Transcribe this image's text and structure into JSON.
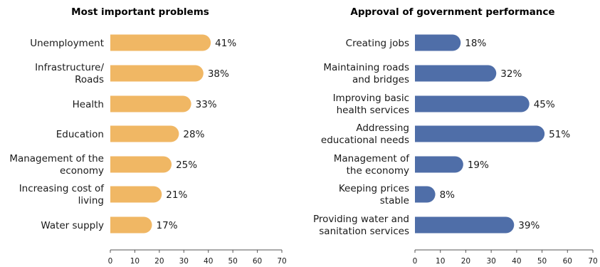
{
  "chart_data": [
    {
      "type": "bar",
      "orientation": "horizontal",
      "title": "Most important problems",
      "categories": [
        "Unemployment",
        "Infrastructure/\nRoads",
        "Health",
        "Education",
        "Management of the\neconomy",
        "Increasing cost of\nliving",
        "Water supply"
      ],
      "values": [
        41,
        38,
        33,
        28,
        25,
        21,
        17
      ],
      "data_labels": [
        "41%",
        "38%",
        "33%",
        "28%",
        "25%",
        "21%",
        "17%"
      ],
      "xlim": [
        0,
        70
      ],
      "xticks": [
        0,
        10,
        20,
        30,
        40,
        50,
        60,
        70
      ],
      "grid": false,
      "color": "#F0B764"
    },
    {
      "type": "bar",
      "orientation": "horizontal",
      "title": "Approval of government performance",
      "categories": [
        "Creating jobs",
        "Maintaining roads\nand bridges",
        "Improving basic\nhealth services",
        "Addressing\neducational needs",
        "Management of\nthe economy",
        "Keeping prices\nstable",
        "Providing water and\nsanitation services"
      ],
      "values": [
        18,
        32,
        45,
        51,
        19,
        8,
        39
      ],
      "data_labels": [
        "18%",
        "32%",
        "45%",
        "51%",
        "19%",
        "8%",
        "39%"
      ],
      "xlim": [
        0,
        70
      ],
      "xticks": [
        0,
        10,
        20,
        30,
        40,
        50,
        60,
        70
      ],
      "grid": false,
      "color": "#4F6EA8"
    }
  ]
}
